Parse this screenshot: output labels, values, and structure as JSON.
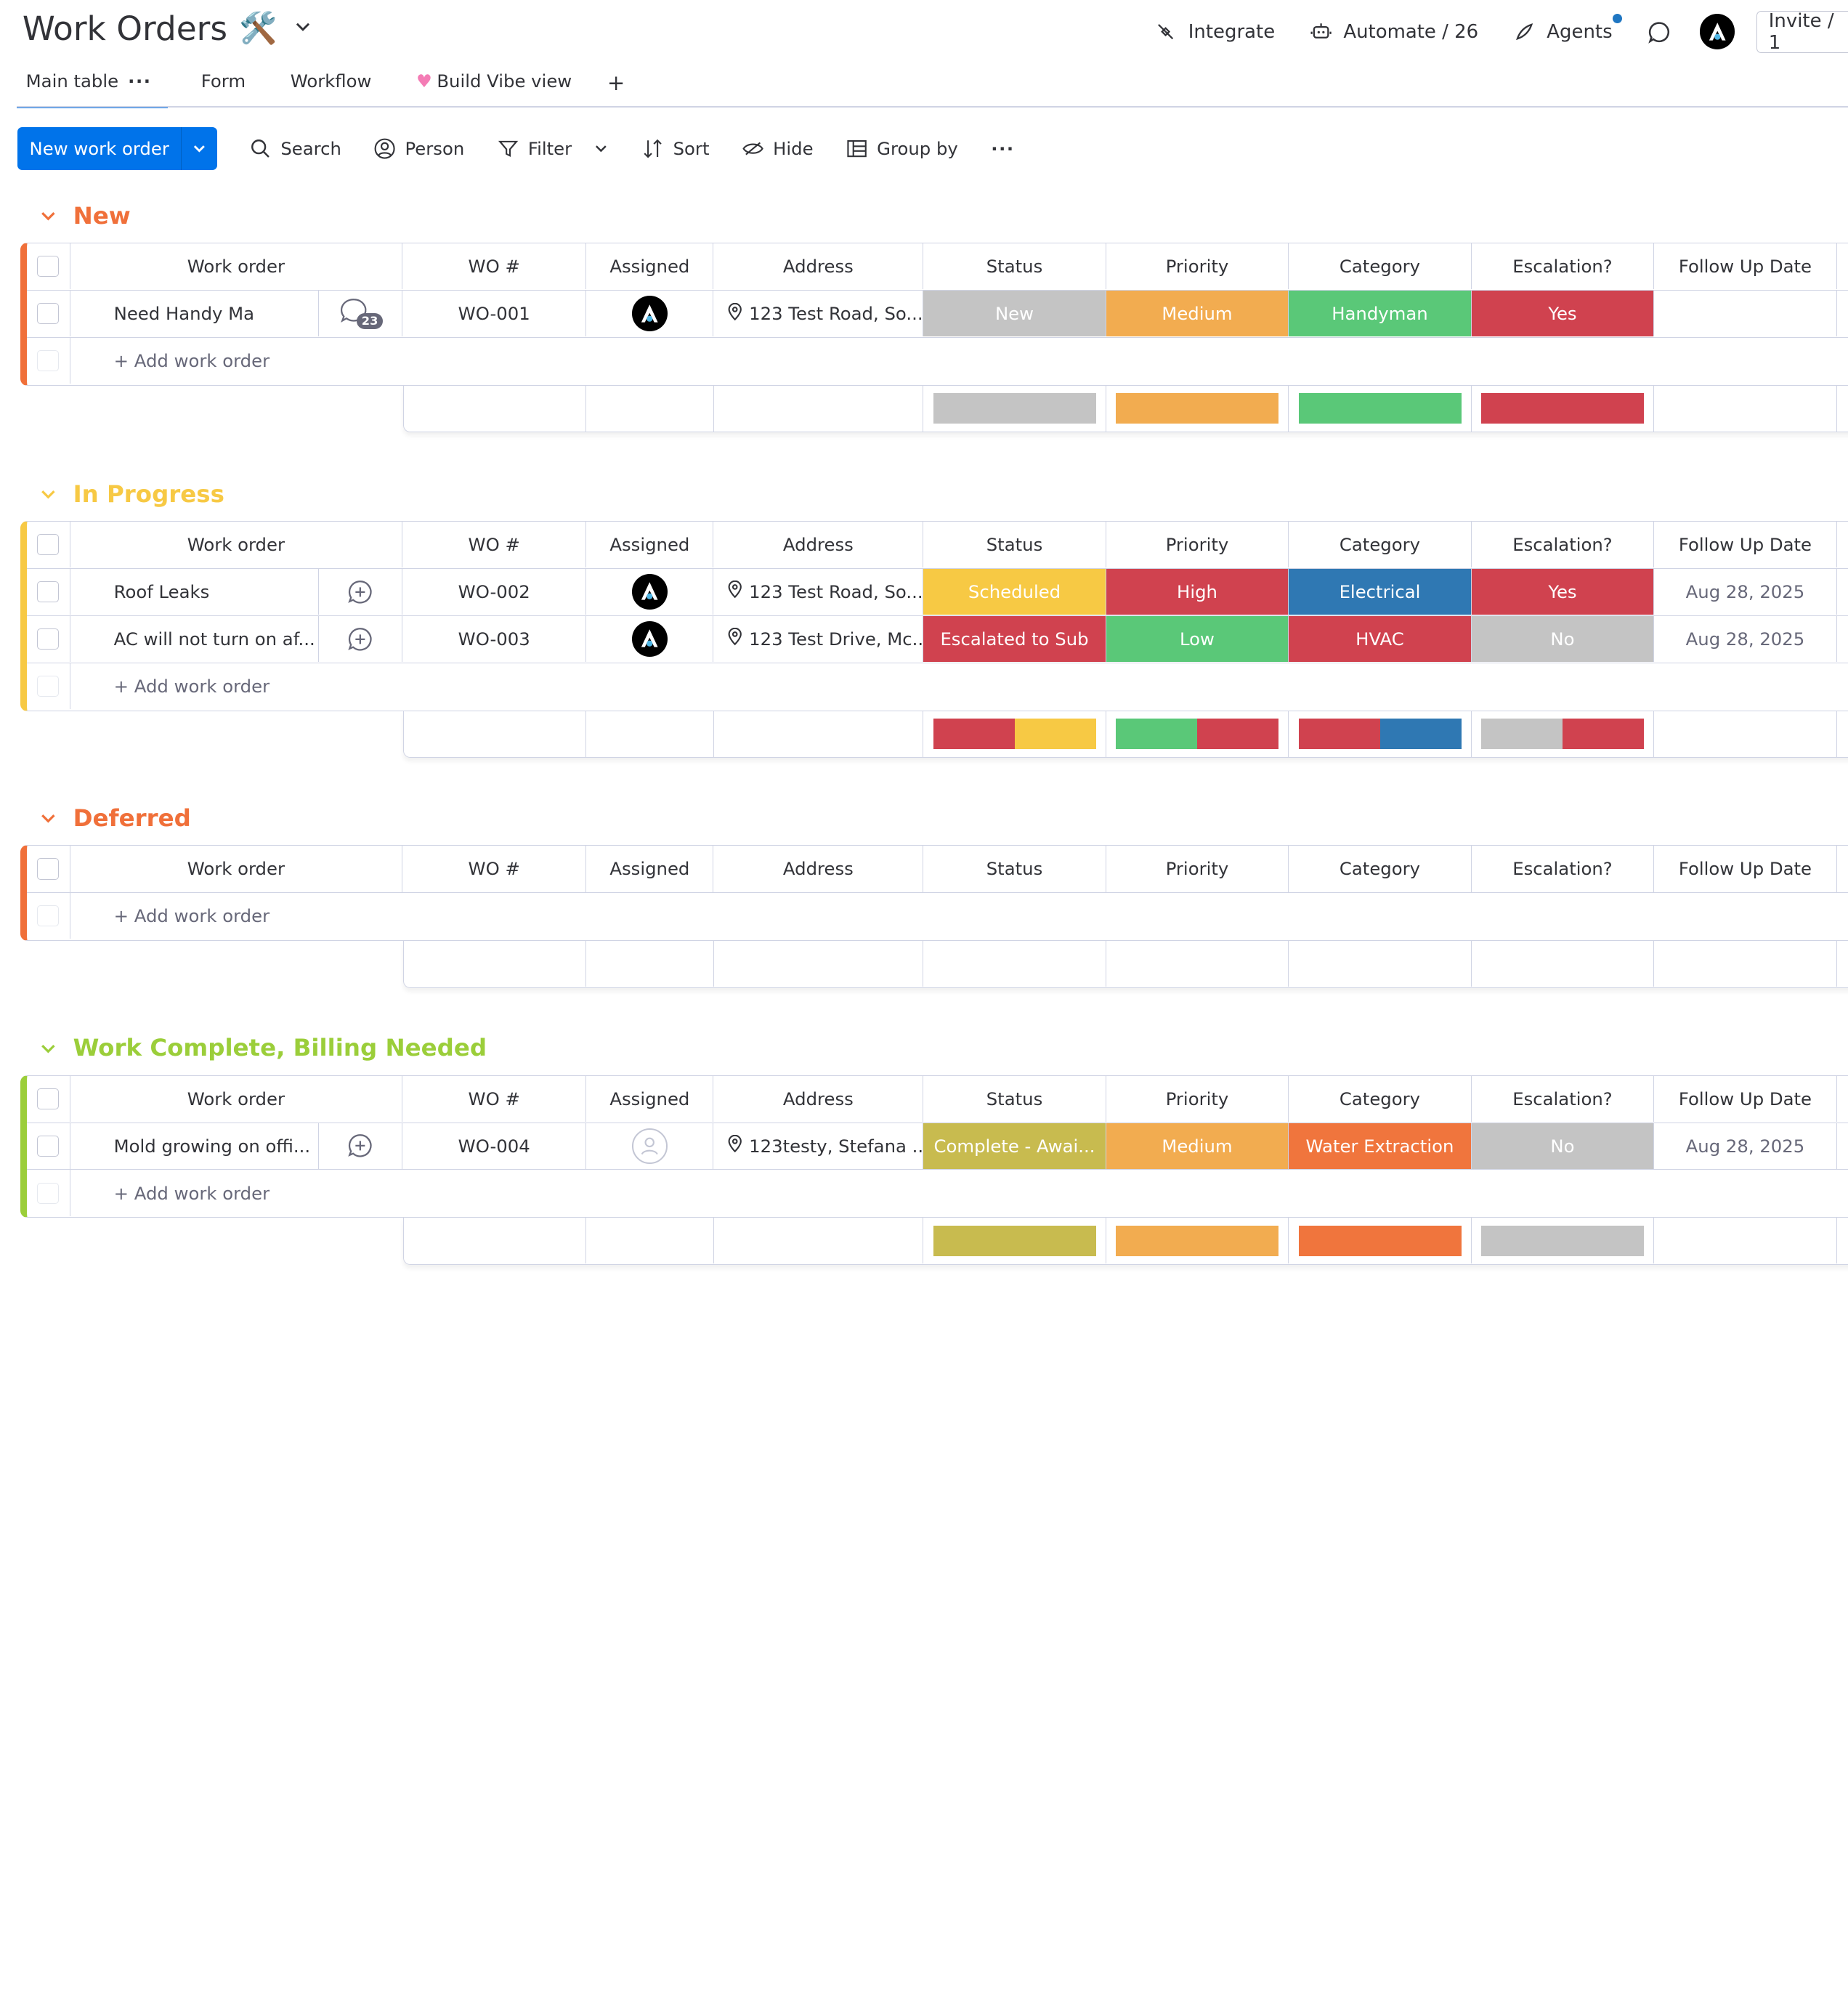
{
  "header": {
    "title": "Work Orders",
    "title_emoji": "🛠️",
    "integrate": "Integrate",
    "automate": "Automate / 26",
    "agents": "Agents",
    "invite": "Invite / 1"
  },
  "tabs": [
    {
      "label": "Main table",
      "active": true
    },
    {
      "label": "Form"
    },
    {
      "label": "Workflow"
    },
    {
      "label": "Build Vibe view"
    }
  ],
  "tab_add": "+",
  "toolbar": {
    "new_label": "New work order",
    "search": "Search",
    "person": "Person",
    "filter": "Filter",
    "sort": "Sort",
    "hide": "Hide",
    "group_by": "Group by"
  },
  "columns": {
    "name": "Work order",
    "wo": "WO #",
    "assigned": "Assigned",
    "address": "Address",
    "status": "Status",
    "priority": "Priority",
    "category": "Category",
    "escalation": "Escalation?",
    "followup": "Follow Up Date"
  },
  "add_row_label": "+ Add work order",
  "colors": {
    "gray": "#c4c4c4",
    "orange": "#f2ac50",
    "green": "#5ac878",
    "red": "#d0424f",
    "yellow": "#f7c944",
    "blue": "#2f78b3",
    "olive": "#c8bb4f",
    "coral": "#f0753d"
  },
  "groups": [
    {
      "title": "New",
      "color": "#f0703a",
      "rows": [
        {
          "name": "Need Handy Ma",
          "conv_count": "23",
          "wo": "WO-001",
          "assigned": "avatar",
          "address": "123 Test Road, So...",
          "status": "New",
          "status_color": "#c4c4c4",
          "priority": "Medium",
          "priority_color": "#f2ac50",
          "category": "Handyman",
          "category_color": "#5ac878",
          "escalation": "Yes",
          "escalation_color": "#d0424f",
          "followup": ""
        }
      ]
    },
    {
      "title": "In Progress",
      "color": "#f7c944",
      "rows": [
        {
          "name": "Roof Leaks",
          "wo": "WO-002",
          "assigned": "avatar",
          "address": "123 Test Road, So...",
          "status": "Scheduled",
          "status_color": "#f7c944",
          "priority": "High",
          "priority_color": "#d0424f",
          "category": "Electrical",
          "category_color": "#2f78b3",
          "escalation": "Yes",
          "escalation_color": "#d0424f",
          "followup": "Aug 28, 2025"
        },
        {
          "name": "AC will not turn on af...",
          "wo": "WO-003",
          "assigned": "avatar",
          "address": "123 Test Drive, Mc...",
          "status": "Escalated to Sub",
          "status_color": "#d0424f",
          "priority": "Low",
          "priority_color": "#5ac878",
          "category": "HVAC",
          "category_color": "#d0424f",
          "escalation": "No",
          "escalation_color": "#c4c4c4",
          "followup": "Aug 28, 2025"
        }
      ]
    },
    {
      "title": "Deferred",
      "color": "#f0703a",
      "rows": []
    },
    {
      "title": "Work Complete, Billing Needed",
      "color": "#9bce3a",
      "rows": [
        {
          "name": "Mold growing on offi...",
          "wo": "WO-004",
          "assigned": "empty",
          "address": "123testy, Stefana ...",
          "status": "Complete - Awai...",
          "status_color": "#c8bb4f",
          "priority": "Medium",
          "priority_color": "#f2ac50",
          "category": "Water Extraction",
          "category_color": "#f0753d",
          "escalation": "No",
          "escalation_color": "#c4c4c4",
          "followup": "Aug 28, 2025"
        }
      ]
    }
  ]
}
